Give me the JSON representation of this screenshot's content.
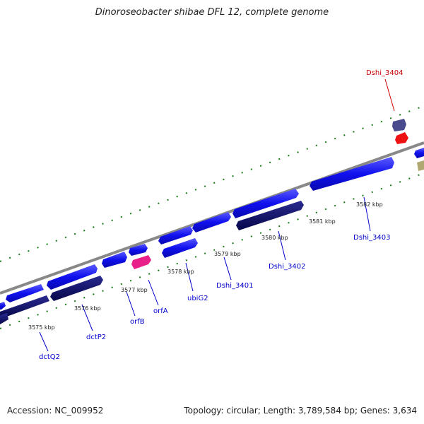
{
  "title": "Dinoroseobacter shibae DFL 12, complete genome",
  "footer": {
    "accession": "Accession: NC_009952",
    "summary": "Topology: circular; Length: 3,789,584 bp; Genes: 3,634"
  },
  "tick_labels": [
    "3575 kbp",
    "3576 kbp",
    "3577 kbp",
    "3578 kbp",
    "3579 kbp",
    "3580 kbp",
    "3581 kbp",
    "3582 kbp"
  ],
  "gene_labels": [
    "dctQ2",
    "dctP2",
    "orfB",
    "orfA",
    "ubiG2",
    "Dshi_3401",
    "Dshi_3402",
    "Dshi_3403",
    "Dshi_3404"
  ],
  "colors": {
    "forward_gene": "#1010ee",
    "reverse_gene": "#0a0a6e",
    "rna_gene": "#e8208a",
    "highlight_gene": "#ee1111",
    "other_gene": "#4a4a8e",
    "unknown_gene": "#b0a870",
    "backbone": "#888888",
    "gc_ticks": "#1a7a1a",
    "label_blue": "#0000cc",
    "label_red": "#cc0000"
  }
}
